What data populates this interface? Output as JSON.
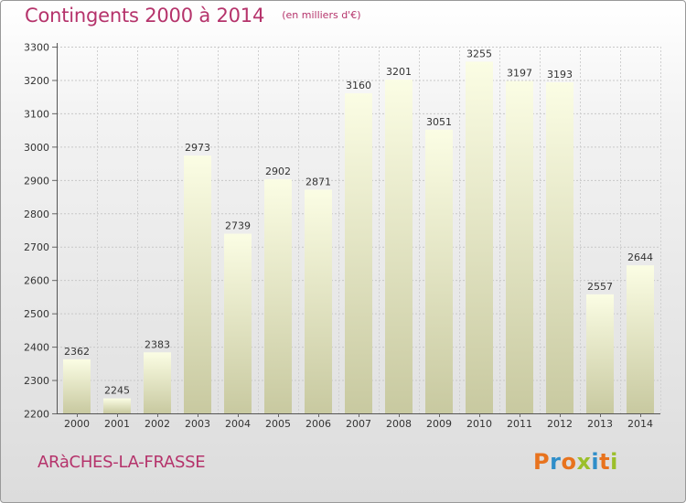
{
  "header": {
    "title": "Contingents 2000 à 2014",
    "subtitle": "(en milliers d'€)"
  },
  "footer": {
    "commune": "ARàCHES-LA-FRASSE",
    "logo_text": "Proxiti"
  },
  "colors": {
    "accent": "#b5336b",
    "logo_letters": [
      "#e8731e",
      "#2f8ec9",
      "#e8731e",
      "#9bbf2a",
      "#2f8ec9",
      "#e8731e",
      "#9bbf2a"
    ]
  },
  "chart_data": {
    "type": "bar",
    "title": "Contingents 2000 à 2014",
    "subtitle": "(en milliers d'€)",
    "xlabel": "",
    "ylabel": "",
    "categories": [
      "2000",
      "2001",
      "2002",
      "2003",
      "2004",
      "2005",
      "2006",
      "2007",
      "2008",
      "2009",
      "2010",
      "2011",
      "2012",
      "2013",
      "2014"
    ],
    "values": [
      2362,
      2245,
      2383,
      2973,
      2739,
      2902,
      2871,
      3160,
      3201,
      3051,
      3255,
      3197,
      3193,
      2557,
      2644
    ],
    "ylim": [
      2200,
      3300
    ],
    "yticks": [
      2200,
      2300,
      2400,
      2500,
      2600,
      2700,
      2800,
      2900,
      3000,
      3100,
      3200,
      3300
    ],
    "grid": true,
    "legend": "none"
  }
}
